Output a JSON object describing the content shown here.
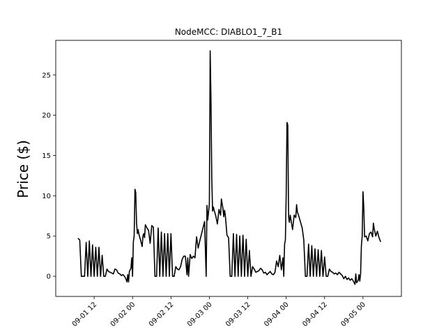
{
  "chart_data": {
    "type": "line",
    "title": "NodeMCC: DIABLO1_7_B1",
    "xlabel": "",
    "ylabel": "Price ($)",
    "x_unit": "datetime",
    "xlim": [
      "2023-09-01 00:00",
      "2023-09-05 12:00"
    ],
    "ylim": [
      -2.5,
      29.3
    ],
    "y_ticks": [
      0,
      5,
      10,
      15,
      20,
      25
    ],
    "x_ticks": [
      "2023-09-01 12:00",
      "2023-09-02 00:00",
      "2023-09-02 12:00",
      "2023-09-03 00:00",
      "2023-09-03 12:00",
      "2023-09-04 00:00",
      "2023-09-04 12:00",
      "2023-09-05 00:00"
    ],
    "x_tick_labels": [
      "09-01 12",
      "09-02 00",
      "09-02 12",
      "09-03 00",
      "09-03 12",
      "09-04 00",
      "09-04 12",
      "09-05 00"
    ],
    "grid": false,
    "series": [
      {
        "color": "#000000",
        "points": [
          [
            "2023-09-01 07:00",
            4.7
          ],
          [
            "2023-09-01 07:30",
            4.5
          ],
          [
            "2023-09-01 08:00",
            0.0
          ],
          [
            "2023-09-01 09:00",
            0.0
          ],
          [
            "2023-09-01 09:30",
            4.2
          ],
          [
            "2023-09-01 10:00",
            0.0
          ],
          [
            "2023-09-01 10:30",
            4.4
          ],
          [
            "2023-09-01 11:00",
            0.0
          ],
          [
            "2023-09-01 11:30",
            3.9
          ],
          [
            "2023-09-01 12:00",
            0.0
          ],
          [
            "2023-09-01 12:30",
            3.6
          ],
          [
            "2023-09-01 13:00",
            0.0
          ],
          [
            "2023-09-01 13:30",
            3.6
          ],
          [
            "2023-09-01 14:00",
            0.0
          ],
          [
            "2023-09-01 14:30",
            2.6
          ],
          [
            "2023-09-01 15:00",
            0.0
          ],
          [
            "2023-09-01 15:30",
            0.0
          ],
          [
            "2023-09-01 16:00",
            0.9
          ],
          [
            "2023-09-01 16:30",
            0.6
          ],
          [
            "2023-09-01 17:00",
            0.5
          ],
          [
            "2023-09-01 17:30",
            0.4
          ],
          [
            "2023-09-01 18:00",
            0.3
          ],
          [
            "2023-09-01 18:30",
            0.9
          ],
          [
            "2023-09-01 19:00",
            0.8
          ],
          [
            "2023-09-01 19:30",
            0.4
          ],
          [
            "2023-09-01 20:00",
            0.3
          ],
          [
            "2023-09-01 20:30",
            0.1
          ],
          [
            "2023-09-01 21:00",
            0.2
          ],
          [
            "2023-09-01 21:30",
            0.0
          ],
          [
            "2023-09-01 22:00",
            -0.4
          ],
          [
            "2023-09-01 22:15",
            -0.7
          ],
          [
            "2023-09-01 22:30",
            0.2
          ],
          [
            "2023-09-01 22:45",
            -0.7
          ],
          [
            "2023-09-01 23:00",
            0.6
          ],
          [
            "2023-09-01 23:30",
            1.0
          ],
          [
            "2023-09-01 23:45",
            2.3
          ],
          [
            "2023-09-02 00:00",
            0.0
          ],
          [
            "2023-09-02 00:15",
            4.3
          ],
          [
            "2023-09-02 00:30",
            5.0
          ],
          [
            "2023-09-02 00:45",
            10.8
          ],
          [
            "2023-09-02 01:00",
            10.4
          ],
          [
            "2023-09-02 01:15",
            6.6
          ],
          [
            "2023-09-02 01:30",
            5.3
          ],
          [
            "2023-09-02 01:45",
            5.8
          ],
          [
            "2023-09-02 02:00",
            5.2
          ],
          [
            "2023-09-02 02:30",
            4.5
          ],
          [
            "2023-09-02 03:00",
            3.7
          ],
          [
            "2023-09-02 03:15",
            5.0
          ],
          [
            "2023-09-02 03:30",
            5.3
          ],
          [
            "2023-09-02 03:45",
            4.8
          ],
          [
            "2023-09-02 04:00",
            6.4
          ],
          [
            "2023-09-02 04:30",
            6.0
          ],
          [
            "2023-09-02 05:00",
            5.7
          ],
          [
            "2023-09-02 05:30",
            4.1
          ],
          [
            "2023-09-02 06:00",
            6.3
          ],
          [
            "2023-09-02 06:30",
            6.1
          ],
          [
            "2023-09-02 07:00",
            0.0
          ],
          [
            "2023-09-02 07:30",
            0.0
          ],
          [
            "2023-09-02 08:00",
            6.0
          ],
          [
            "2023-09-02 08:30",
            0.0
          ],
          [
            "2023-09-02 09:00",
            5.5
          ],
          [
            "2023-09-02 09:30",
            0.0
          ],
          [
            "2023-09-02 10:00",
            5.3
          ],
          [
            "2023-09-02 10:30",
            0.0
          ],
          [
            "2023-09-02 11:00",
            5.3
          ],
          [
            "2023-09-02 11:30",
            0.0
          ],
          [
            "2023-09-02 12:00",
            5.3
          ],
          [
            "2023-09-02 12:30",
            0.0
          ],
          [
            "2023-09-02 13:00",
            0.0
          ],
          [
            "2023-09-02 13:30",
            1.2
          ],
          [
            "2023-09-02 14:00",
            0.9
          ],
          [
            "2023-09-02 14:30",
            0.8
          ],
          [
            "2023-09-02 15:00",
            1.2
          ],
          [
            "2023-09-02 15:30",
            2.1
          ],
          [
            "2023-09-02 16:00",
            2.5
          ],
          [
            "2023-09-02 16:30",
            2.5
          ],
          [
            "2023-09-02 17:00",
            0.2
          ],
          [
            "2023-09-02 17:15",
            2.3
          ],
          [
            "2023-09-02 17:30",
            0.0
          ],
          [
            "2023-09-02 18:00",
            2.7
          ],
          [
            "2023-09-02 18:30",
            2.2
          ],
          [
            "2023-09-02 19:00",
            2.5
          ],
          [
            "2023-09-02 19:30",
            2.3
          ],
          [
            "2023-09-02 20:00",
            4.9
          ],
          [
            "2023-09-02 20:30",
            3.5
          ],
          [
            "2023-09-02 21:00",
            4.4
          ],
          [
            "2023-09-02 22:00",
            6.0
          ],
          [
            "2023-09-02 22:30",
            6.8
          ],
          [
            "2023-09-02 23:00",
            0.0
          ],
          [
            "2023-09-02 23:15",
            8.8
          ],
          [
            "2023-09-02 23:30",
            7.0
          ],
          [
            "2023-09-03 00:00",
            9.0
          ],
          [
            "2023-09-03 00:15",
            28.0
          ],
          [
            "2023-09-03 00:30",
            22.0
          ],
          [
            "2023-09-03 00:45",
            12.2
          ],
          [
            "2023-09-03 01:00",
            8.1
          ],
          [
            "2023-09-03 01:15",
            8.6
          ],
          [
            "2023-09-03 01:30",
            8.2
          ],
          [
            "2023-09-03 02:00",
            7.5
          ],
          [
            "2023-09-03 02:30",
            6.5
          ],
          [
            "2023-09-03 03:00",
            8.3
          ],
          [
            "2023-09-03 03:30",
            7.6
          ],
          [
            "2023-09-03 03:45",
            9.6
          ],
          [
            "2023-09-03 04:00",
            9.0
          ],
          [
            "2023-09-03 04:15",
            8.4
          ],
          [
            "2023-09-03 04:30",
            7.4
          ],
          [
            "2023-09-03 04:45",
            8.2
          ],
          [
            "2023-09-03 05:00",
            7.5
          ],
          [
            "2023-09-03 05:30",
            5.1
          ],
          [
            "2023-09-03 06:00",
            4.8
          ],
          [
            "2023-09-03 06:30",
            0.0
          ],
          [
            "2023-09-03 07:00",
            0.0
          ],
          [
            "2023-09-03 07:30",
            5.3
          ],
          [
            "2023-09-03 08:00",
            0.0
          ],
          [
            "2023-09-03 08:30",
            5.2
          ],
          [
            "2023-09-03 09:00",
            0.0
          ],
          [
            "2023-09-03 09:30",
            5.0
          ],
          [
            "2023-09-03 10:00",
            0.0
          ],
          [
            "2023-09-03 10:30",
            5.1
          ],
          [
            "2023-09-03 11:00",
            0.0
          ],
          [
            "2023-09-03 11:30",
            4.6
          ],
          [
            "2023-09-03 12:00",
            0.0
          ],
          [
            "2023-09-03 12:30",
            3.2
          ],
          [
            "2023-09-03 13:00",
            0.0
          ],
          [
            "2023-09-03 13:30",
            1.2
          ],
          [
            "2023-09-03 14:00",
            0.9
          ],
          [
            "2023-09-03 14:30",
            0.5
          ],
          [
            "2023-09-03 15:00",
            0.6
          ],
          [
            "2023-09-03 15:30",
            0.7
          ],
          [
            "2023-09-03 16:00",
            1.0
          ],
          [
            "2023-09-03 16:30",
            0.8
          ],
          [
            "2023-09-03 17:00",
            0.4
          ],
          [
            "2023-09-03 17:30",
            0.5
          ],
          [
            "2023-09-03 18:00",
            0.2
          ],
          [
            "2023-09-03 18:30",
            0.4
          ],
          [
            "2023-09-03 19:00",
            0.6
          ],
          [
            "2023-09-03 19:30",
            0.3
          ],
          [
            "2023-09-03 20:00",
            0.2
          ],
          [
            "2023-09-03 20:30",
            0.5
          ],
          [
            "2023-09-03 21:00",
            1.9
          ],
          [
            "2023-09-03 21:30",
            1.2
          ],
          [
            "2023-09-03 22:00",
            2.6
          ],
          [
            "2023-09-03 22:30",
            0.8
          ],
          [
            "2023-09-03 23:00",
            2.3
          ],
          [
            "2023-09-03 23:15",
            0.0
          ],
          [
            "2023-09-03 23:30",
            4.0
          ],
          [
            "2023-09-03 23:45",
            4.5
          ],
          [
            "2023-09-04 00:00",
            10.0
          ],
          [
            "2023-09-04 00:15",
            19.1
          ],
          [
            "2023-09-04 00:30",
            18.8
          ],
          [
            "2023-09-04 00:45",
            7.4
          ],
          [
            "2023-09-04 01:00",
            6.7
          ],
          [
            "2023-09-04 01:15",
            7.6
          ],
          [
            "2023-09-04 01:30",
            7.0
          ],
          [
            "2023-09-04 02:00",
            5.8
          ],
          [
            "2023-09-04 02:30",
            7.6
          ],
          [
            "2023-09-04 03:00",
            7.3
          ],
          [
            "2023-09-04 03:15",
            8.9
          ],
          [
            "2023-09-04 03:30",
            8.0
          ],
          [
            "2023-09-04 04:00",
            7.4
          ],
          [
            "2023-09-04 04:30",
            6.7
          ],
          [
            "2023-09-04 05:00",
            6.0
          ],
          [
            "2023-09-04 05:30",
            4.5
          ],
          [
            "2023-09-04 06:00",
            0.0
          ],
          [
            "2023-09-04 06:30",
            0.0
          ],
          [
            "2023-09-04 07:00",
            4.0
          ],
          [
            "2023-09-04 07:30",
            0.0
          ],
          [
            "2023-09-04 08:00",
            3.8
          ],
          [
            "2023-09-04 08:30",
            0.0
          ],
          [
            "2023-09-04 09:00",
            3.4
          ],
          [
            "2023-09-04 09:30",
            0.0
          ],
          [
            "2023-09-04 10:00",
            3.3
          ],
          [
            "2023-09-04 10:30",
            0.0
          ],
          [
            "2023-09-04 11:00",
            3.2
          ],
          [
            "2023-09-04 11:30",
            0.0
          ],
          [
            "2023-09-04 12:00",
            2.4
          ],
          [
            "2023-09-04 12:30",
            0.0
          ],
          [
            "2023-09-04 13:00",
            0.0
          ],
          [
            "2023-09-04 13:30",
            0.9
          ],
          [
            "2023-09-04 14:00",
            0.6
          ],
          [
            "2023-09-04 14:30",
            0.5
          ],
          [
            "2023-09-04 15:00",
            0.3
          ],
          [
            "2023-09-04 15:30",
            0.4
          ],
          [
            "2023-09-04 16:00",
            0.2
          ],
          [
            "2023-09-04 16:30",
            0.5
          ],
          [
            "2023-09-04 17:00",
            0.3
          ],
          [
            "2023-09-04 17:30",
            0.1
          ],
          [
            "2023-09-04 18:00",
            -0.3
          ],
          [
            "2023-09-04 18:30",
            0.0
          ],
          [
            "2023-09-04 19:00",
            -0.4
          ],
          [
            "2023-09-04 19:30",
            -0.2
          ],
          [
            "2023-09-04 20:00",
            -0.5
          ],
          [
            "2023-09-04 20:30",
            -0.3
          ],
          [
            "2023-09-04 21:00",
            -0.6
          ],
          [
            "2023-09-04 21:30",
            -1.0
          ],
          [
            "2023-09-04 21:45",
            0.3
          ],
          [
            "2023-09-04 22:00",
            -0.8
          ],
          [
            "2023-09-04 22:30",
            -0.5
          ],
          [
            "2023-09-04 22:45",
            0.2
          ],
          [
            "2023-09-04 23:00",
            -0.6
          ],
          [
            "2023-09-04 23:15",
            0.3
          ],
          [
            "2023-09-04 23:30",
            3.8
          ],
          [
            "2023-09-04 23:45",
            5.0
          ],
          [
            "2023-09-05 00:00",
            10.5
          ],
          [
            "2023-09-05 00:15",
            8.5
          ],
          [
            "2023-09-05 00:30",
            4.9
          ],
          [
            "2023-09-05 01:00",
            5.0
          ],
          [
            "2023-09-05 01:30",
            4.4
          ],
          [
            "2023-09-05 02:00",
            5.3
          ],
          [
            "2023-09-05 02:30",
            5.5
          ],
          [
            "2023-09-05 03:00",
            4.9
          ],
          [
            "2023-09-05 03:15",
            6.6
          ],
          [
            "2023-09-05 03:30",
            5.9
          ],
          [
            "2023-09-05 04:00",
            5.0
          ],
          [
            "2023-09-05 04:30",
            5.6
          ],
          [
            "2023-09-05 05:00",
            4.8
          ],
          [
            "2023-09-05 05:30",
            4.3
          ]
        ]
      }
    ]
  }
}
